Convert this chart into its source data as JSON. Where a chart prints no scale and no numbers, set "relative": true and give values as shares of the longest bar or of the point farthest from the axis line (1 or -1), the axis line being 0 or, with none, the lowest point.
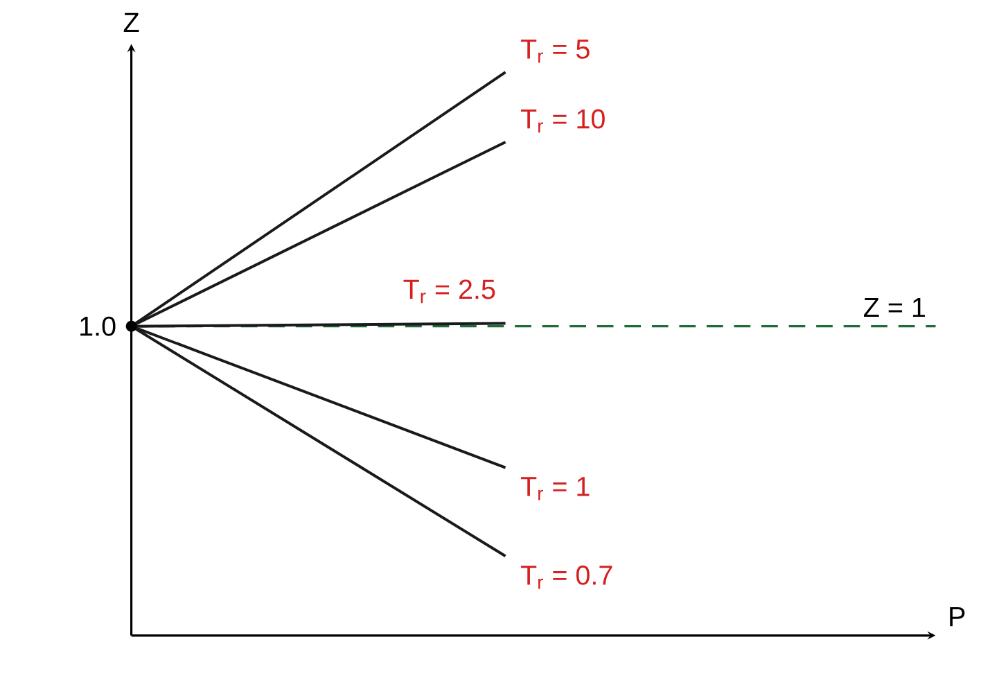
{
  "chart_data": {
    "type": "line",
    "relative": true,
    "xlabel": "P",
    "ylabel": "Z",
    "categories": [
      null,
      null
    ],
    "series": [
      {
        "name": "T$_{r}$ = 5",
        "color": "#1a1a1a",
        "values": [
          0.549,
          1
        ]
      },
      {
        "name": "T$_{r}$ = 10",
        "color": "#1a1a1a",
        "values": [
          0.549,
          0.876
        ]
      },
      {
        "name": "T$_{r}$ = 2.5",
        "color": "#1a1a1a",
        "values": [
          0.549,
          0.554
        ]
      },
      {
        "name": "T$_{r}$ = 1",
        "color": "#1a1a1a",
        "values": [
          0.549,
          0.298
        ]
      },
      {
        "name": "T$_{r}$ = 0.7",
        "color": "#1a1a1a",
        "values": [
          0.549,
          0.141
        ]
      }
    ],
    "ref_lines": [
      {
        "axis": "y",
        "value": 0.549,
        "label": "Z = 1",
        "color": "#1f6b3a",
        "line_style": "dashed"
      }
    ],
    "annotations": [
      "1.0"
    ]
  }
}
